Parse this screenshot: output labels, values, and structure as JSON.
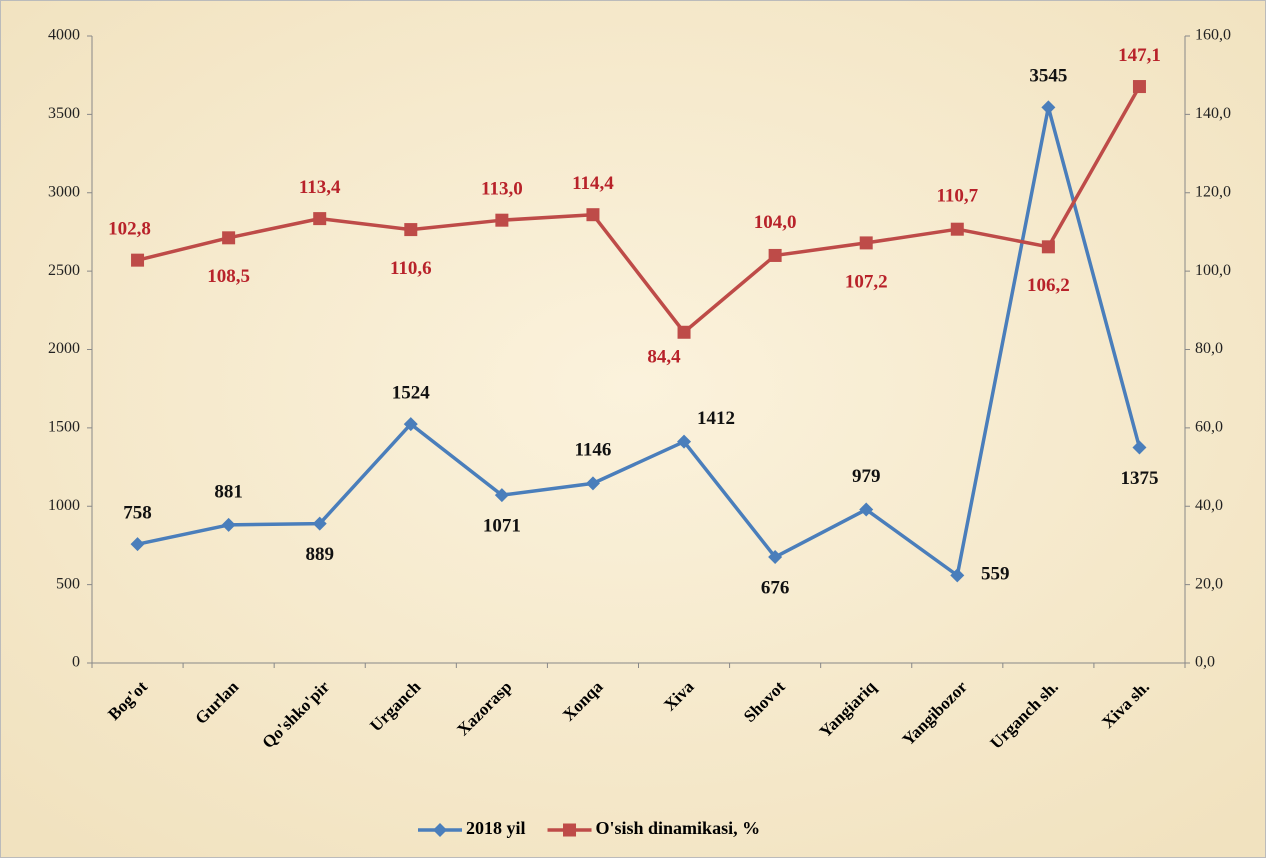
{
  "chart_data": {
    "type": "line",
    "categories": [
      "Bog'ot",
      "Gurlan",
      "Qo'shko'pir",
      "Urganch",
      "Xazorasp",
      "Xonqa",
      "Xiva",
      "Shovot",
      "Yangiariq",
      "Yangibozor",
      "Urganch sh.",
      "Xiva sh."
    ],
    "series": [
      {
        "name": "2018 yil",
        "color": "#4a7ebb",
        "values": [
          758,
          881,
          889,
          1524,
          1071,
          1146,
          1412,
          676,
          979,
          559,
          3545,
          1375
        ]
      },
      {
        "name": "O'sish dinamikasi, %",
        "color": "#be4b48",
        "axis": "y2",
        "values": [
          102.8,
          108.5,
          113.4,
          110.6,
          113.0,
          114.4,
          84.4,
          104.0,
          107.2,
          110.7,
          106.2,
          147.1
        ],
        "value_labels": [
          "102,8",
          "108,5",
          "113,4",
          "110,6",
          "113,0",
          "114,4",
          "84,4",
          "104,0",
          "107,2",
          "110,7",
          "106,2",
          "147,1"
        ]
      }
    ],
    "ylim": [
      0,
      4000
    ],
    "yticks": [
      0,
      500,
      1000,
      1500,
      2000,
      2500,
      3000,
      3500,
      4000
    ],
    "y2lim": [
      0,
      160
    ],
    "y2ticks": [
      {
        "value": 0,
        "label": "0,0"
      },
      {
        "value": 20,
        "label": "20,0"
      },
      {
        "value": 40,
        "label": "40,0"
      },
      {
        "value": 60,
        "label": "60,0"
      },
      {
        "value": 80,
        "label": "80,0"
      },
      {
        "value": 100,
        "label": "100,0"
      },
      {
        "value": 120,
        "label": "120,0"
      },
      {
        "value": 140,
        "label": "140,0"
      },
      {
        "value": 160,
        "label": "160,0"
      }
    ],
    "legend": "bottom",
    "grid": false
  }
}
